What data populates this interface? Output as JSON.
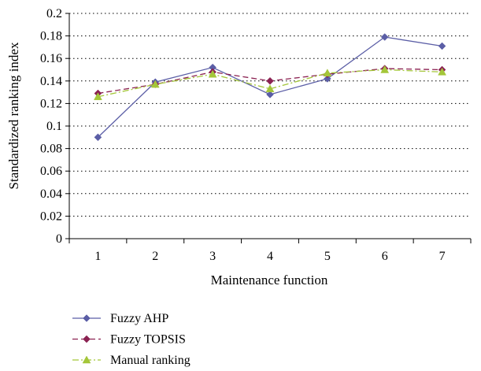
{
  "chart_data": {
    "type": "line",
    "xlabel": "Maintenance function",
    "ylabel": "Standardized ranking index",
    "categories": [
      "1",
      "2",
      "3",
      "4",
      "5",
      "6",
      "7"
    ],
    "ylim": [
      0,
      0.2
    ],
    "yticks": [
      "0",
      "0.02",
      "0.04",
      "0.06",
      "0.08",
      "0.1",
      "0.12",
      "0.14",
      "0.16",
      "0.18",
      "0.2"
    ],
    "grid": "dotted",
    "legend_position": "bottom-left",
    "series": [
      {
        "name": "Fuzzy AHP",
        "values": [
          0.09,
          0.139,
          0.152,
          0.128,
          0.142,
          0.179,
          0.171
        ],
        "color": "#5b5ea6",
        "dash": "solid",
        "marker": "diamond"
      },
      {
        "name": "Fuzzy TOPSIS",
        "values": [
          0.129,
          0.137,
          0.148,
          0.14,
          0.146,
          0.151,
          0.15
        ],
        "color": "#8b2252",
        "dash": "dashed",
        "marker": "diamond"
      },
      {
        "name": "Manual ranking",
        "values": [
          0.126,
          0.137,
          0.146,
          0.133,
          0.147,
          0.15,
          0.148
        ],
        "color": "#a4c639",
        "dash": "dashdot",
        "marker": "triangle"
      }
    ]
  }
}
